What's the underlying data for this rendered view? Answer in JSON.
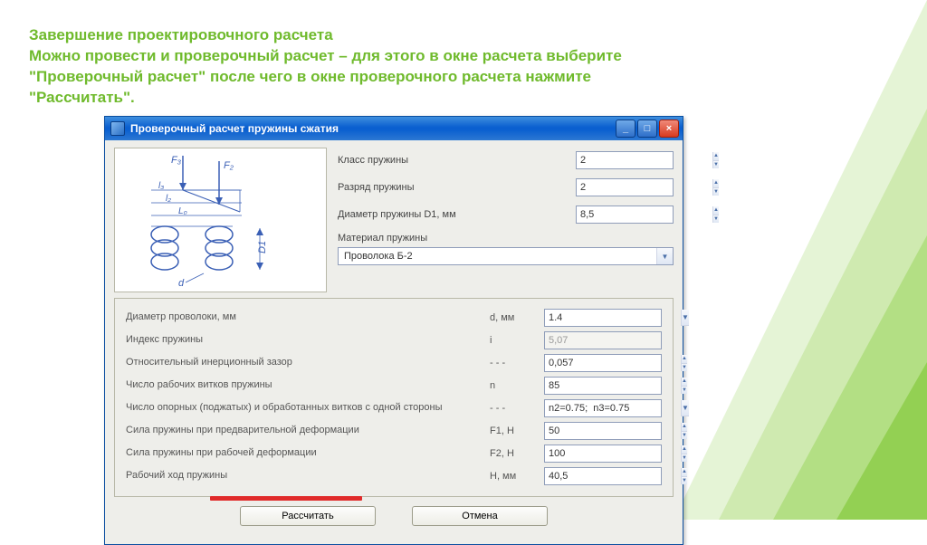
{
  "heading": "Завершение проектировочного расчета\nМожно провести и проверочный расчет – для этого в окне расчета выберите \"Проверочный расчет\" после чего в окне проверочного расчета нажмите \"Рассчитать\".",
  "dialog": {
    "title": "Проверочный расчет пружины сжатия",
    "upper_fields": [
      {
        "label": "Класс пружины",
        "value": "2",
        "type": "spin"
      },
      {
        "label": "Разряд пружины",
        "value": "2",
        "type": "spin"
      },
      {
        "label": "Диаметр пружины  D1, мм",
        "value": "8,5",
        "type": "spin"
      }
    ],
    "material_label": "Материал пружины",
    "material_value": "Проволока Б-2",
    "params": [
      {
        "label": "Диаметр проволоки, мм",
        "sym": "d,  мм",
        "value": "1.4",
        "type": "dropdown"
      },
      {
        "label": "Индекс пружины",
        "sym": "i",
        "value": "5,07",
        "disabled": true
      },
      {
        "label": "Относительный инерционный зазор",
        "sym": "- - -",
        "value": "0,057",
        "type": "spin"
      },
      {
        "label": "Число рабочих витков пружины",
        "sym": "n",
        "value": "85",
        "type": "spin"
      },
      {
        "label": "Число опорных (поджатых) и обработанных витков с одной стороны",
        "sym": "- - -",
        "value": "n2=0.75;  n3=0.75",
        "type": "dropdown"
      },
      {
        "label": "Сила пружины при предварительной деформации",
        "sym": "F1, Н",
        "value": "50",
        "type": "spin"
      },
      {
        "label": "Сила пружины при рабочей деформации",
        "sym": "F2, Н",
        "value": "100",
        "type": "spin"
      },
      {
        "label": "Рабочий ход пружины",
        "sym": "H,  мм",
        "value": "40,5",
        "type": "spin"
      }
    ],
    "buttons": {
      "calc": "Рассчитать",
      "cancel": "Отмена"
    }
  },
  "colors": {
    "heading": "#6fba2c",
    "tri1": "#e5f4d6",
    "tri2": "#cfeab0",
    "tri3": "#b3df84",
    "tri4": "#93d053"
  },
  "diagram_labels": {
    "F3": "F₃",
    "F2": "F₂",
    "l3": "l₃",
    "l2": "l₂",
    "L0": "L₀",
    "D1": "D1",
    "d": "d"
  }
}
